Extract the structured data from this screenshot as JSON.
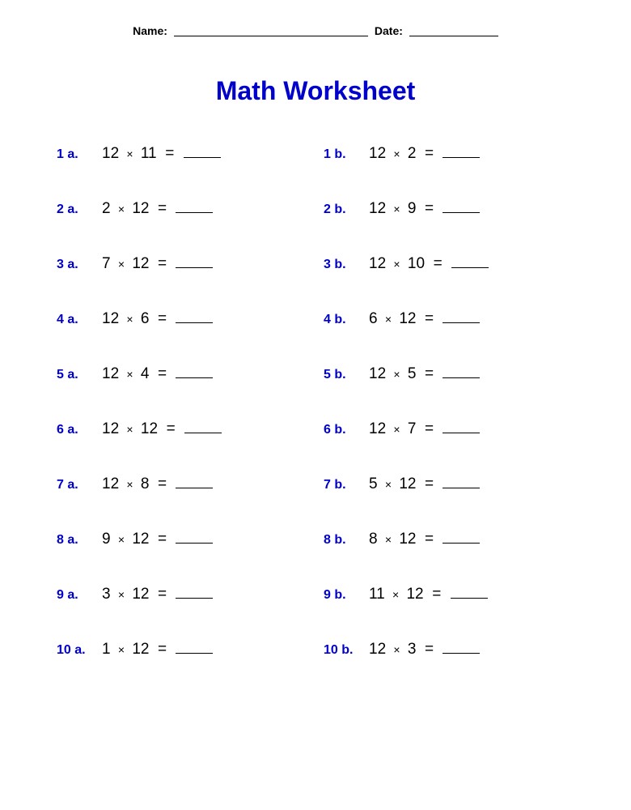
{
  "header": {
    "name_label": "Name:",
    "date_label": "Date:"
  },
  "title": "Math Worksheet",
  "label_color": "#0000cc",
  "text_color": "#000000",
  "background_color": "#ffffff",
  "title_fontsize": 32,
  "label_fontsize": 16,
  "expr_fontsize": 19,
  "operator": "×",
  "equals": "=",
  "problems": [
    {
      "num": "1 a.",
      "a": 12,
      "b": 11
    },
    {
      "num": "1 b.",
      "a": 12,
      "b": 2
    },
    {
      "num": "2 a.",
      "a": 2,
      "b": 12
    },
    {
      "num": "2 b.",
      "a": 12,
      "b": 9
    },
    {
      "num": "3 a.",
      "a": 7,
      "b": 12
    },
    {
      "num": "3 b.",
      "a": 12,
      "b": 10
    },
    {
      "num": "4 a.",
      "a": 12,
      "b": 6
    },
    {
      "num": "4 b.",
      "a": 6,
      "b": 12
    },
    {
      "num": "5 a.",
      "a": 12,
      "b": 4
    },
    {
      "num": "5 b.",
      "a": 12,
      "b": 5
    },
    {
      "num": "6 a.",
      "a": 12,
      "b": 12
    },
    {
      "num": "6 b.",
      "a": 12,
      "b": 7
    },
    {
      "num": "7 a.",
      "a": 12,
      "b": 8
    },
    {
      "num": "7 b.",
      "a": 5,
      "b": 12
    },
    {
      "num": "8 a.",
      "a": 9,
      "b": 12
    },
    {
      "num": "8 b.",
      "a": 8,
      "b": 12
    },
    {
      "num": "9 a.",
      "a": 3,
      "b": 12
    },
    {
      "num": "9 b.",
      "a": 11,
      "b": 12
    },
    {
      "num": "10 a.",
      "a": 1,
      "b": 12
    },
    {
      "num": "10 b.",
      "a": 12,
      "b": 3
    }
  ]
}
